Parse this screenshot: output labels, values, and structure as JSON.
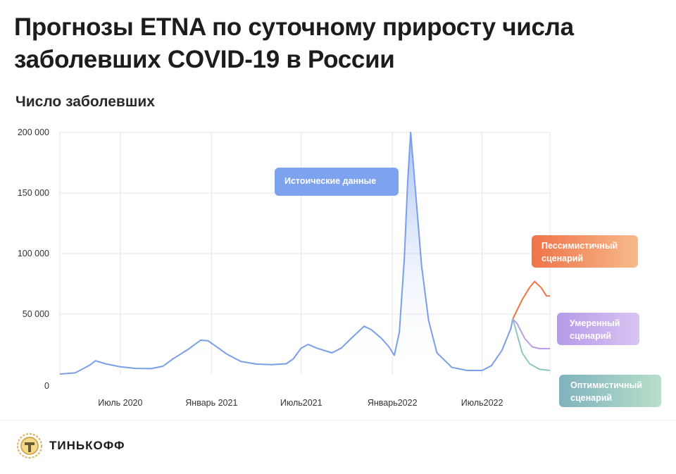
{
  "title": "Прогнозы ETNA по суточному приросту числа заболевших COVID-19 в России",
  "brand": "ТИНЬКОФФ",
  "colors": {
    "historical": "#7a9ee8",
    "pessimistic": "#ef7448",
    "moderate": "#b99be8",
    "optimistic": "#8fc5c0",
    "grid": "#e4e4e4"
  },
  "chart_data": {
    "type": "line",
    "title": "",
    "ylabel": "Число заболевших",
    "xlabel": "",
    "ylim": [
      0,
      200000
    ],
    "grid": true,
    "y_ticks": [
      {
        "value": 0,
        "label": "0"
      },
      {
        "value": 50000,
        "label": "50 000"
      },
      {
        "value": 100000,
        "label": "100 000"
      },
      {
        "value": 150000,
        "label": "150 000"
      },
      {
        "value": 200000,
        "label": "200 000"
      }
    ],
    "x_range": [
      "2020-03-01",
      "2022-11-15"
    ],
    "x_ticks": [
      {
        "date": "2020-07-01",
        "label": "Июль 2020"
      },
      {
        "date": "2021-01-01",
        "label": "Январь 2021"
      },
      {
        "date": "2021-07-01",
        "label": "Июль2021"
      },
      {
        "date": "2022-01-01",
        "label": "Январь2022"
      },
      {
        "date": "2022-07-01",
        "label": "Июль2022"
      }
    ],
    "series": [
      {
        "name": "Истоические данные",
        "key": "historical",
        "points": [
          [
            "2020-03-01",
            500
          ],
          [
            "2020-04-01",
            1500
          ],
          [
            "2020-05-01",
            8000
          ],
          [
            "2020-05-12",
            11500
          ],
          [
            "2020-06-01",
            9000
          ],
          [
            "2020-07-01",
            6500
          ],
          [
            "2020-08-01",
            5200
          ],
          [
            "2020-09-01",
            5000
          ],
          [
            "2020-09-25",
            7000
          ],
          [
            "2020-10-15",
            13000
          ],
          [
            "2020-11-15",
            21000
          ],
          [
            "2020-12-10",
            28500
          ],
          [
            "2020-12-25",
            28000
          ],
          [
            "2021-01-15",
            22000
          ],
          [
            "2021-02-01",
            17000
          ],
          [
            "2021-03-01",
            11000
          ],
          [
            "2021-04-01",
            8800
          ],
          [
            "2021-05-01",
            8300
          ],
          [
            "2021-06-01",
            9000
          ],
          [
            "2021-06-15",
            13000
          ],
          [
            "2021-07-01",
            22000
          ],
          [
            "2021-07-15",
            25000
          ],
          [
            "2021-08-01",
            22000
          ],
          [
            "2021-09-01",
            18000
          ],
          [
            "2021-09-20",
            22000
          ],
          [
            "2021-10-10",
            30000
          ],
          [
            "2021-11-05",
            40000
          ],
          [
            "2021-11-20",
            37000
          ],
          [
            "2021-12-10",
            30000
          ],
          [
            "2021-12-25",
            23000
          ],
          [
            "2022-01-05",
            16000
          ],
          [
            "2022-01-15",
            35000
          ],
          [
            "2022-01-25",
            95000
          ],
          [
            "2022-02-01",
            160000
          ],
          [
            "2022-02-07",
            200000
          ],
          [
            "2022-02-12",
            175000
          ],
          [
            "2022-02-20",
            135000
          ],
          [
            "2022-03-01",
            90000
          ],
          [
            "2022-03-15",
            45000
          ],
          [
            "2022-04-01",
            18000
          ],
          [
            "2022-05-01",
            6000
          ],
          [
            "2022-06-01",
            3500
          ],
          [
            "2022-07-01",
            3500
          ],
          [
            "2022-07-20",
            7500
          ],
          [
            "2022-08-10",
            20000
          ],
          [
            "2022-08-20",
            30000
          ],
          [
            "2022-08-28",
            38000
          ],
          [
            "2022-09-01",
            46000
          ]
        ]
      },
      {
        "name": "Пессимистичный сценарий",
        "key": "pessimistic",
        "points": [
          [
            "2022-09-01",
            46000
          ],
          [
            "2022-09-20",
            62000
          ],
          [
            "2022-10-05",
            72000
          ],
          [
            "2022-10-15",
            77000
          ],
          [
            "2022-10-28",
            72000
          ],
          [
            "2022-11-08",
            65000
          ],
          [
            "2022-11-15",
            65000
          ]
        ]
      },
      {
        "name": "Умеренный сценарий",
        "key": "moderate",
        "points": [
          [
            "2022-09-01",
            46000
          ],
          [
            "2022-09-10",
            42000
          ],
          [
            "2022-09-25",
            30000
          ],
          [
            "2022-10-10",
            23000
          ],
          [
            "2022-10-25",
            21500
          ],
          [
            "2022-11-15",
            21500
          ]
        ]
      },
      {
        "name": "Оптимистичный сценарий",
        "key": "optimistic",
        "points": [
          [
            "2022-09-01",
            46000
          ],
          [
            "2022-09-08",
            36000
          ],
          [
            "2022-09-20",
            18000
          ],
          [
            "2022-10-05",
            9000
          ],
          [
            "2022-10-25",
            4500
          ],
          [
            "2022-11-15",
            3500
          ]
        ]
      }
    ],
    "annotations": {
      "historical": "Истоические данные",
      "pessimistic_line1": "Пессимистичный",
      "pessimistic_line2": "сценарий",
      "moderate_line1": "Умеренный",
      "moderate_line2": "сценарий",
      "optimistic_line1": "Оптимистичный",
      "optimistic_line2": "сценарий"
    }
  }
}
